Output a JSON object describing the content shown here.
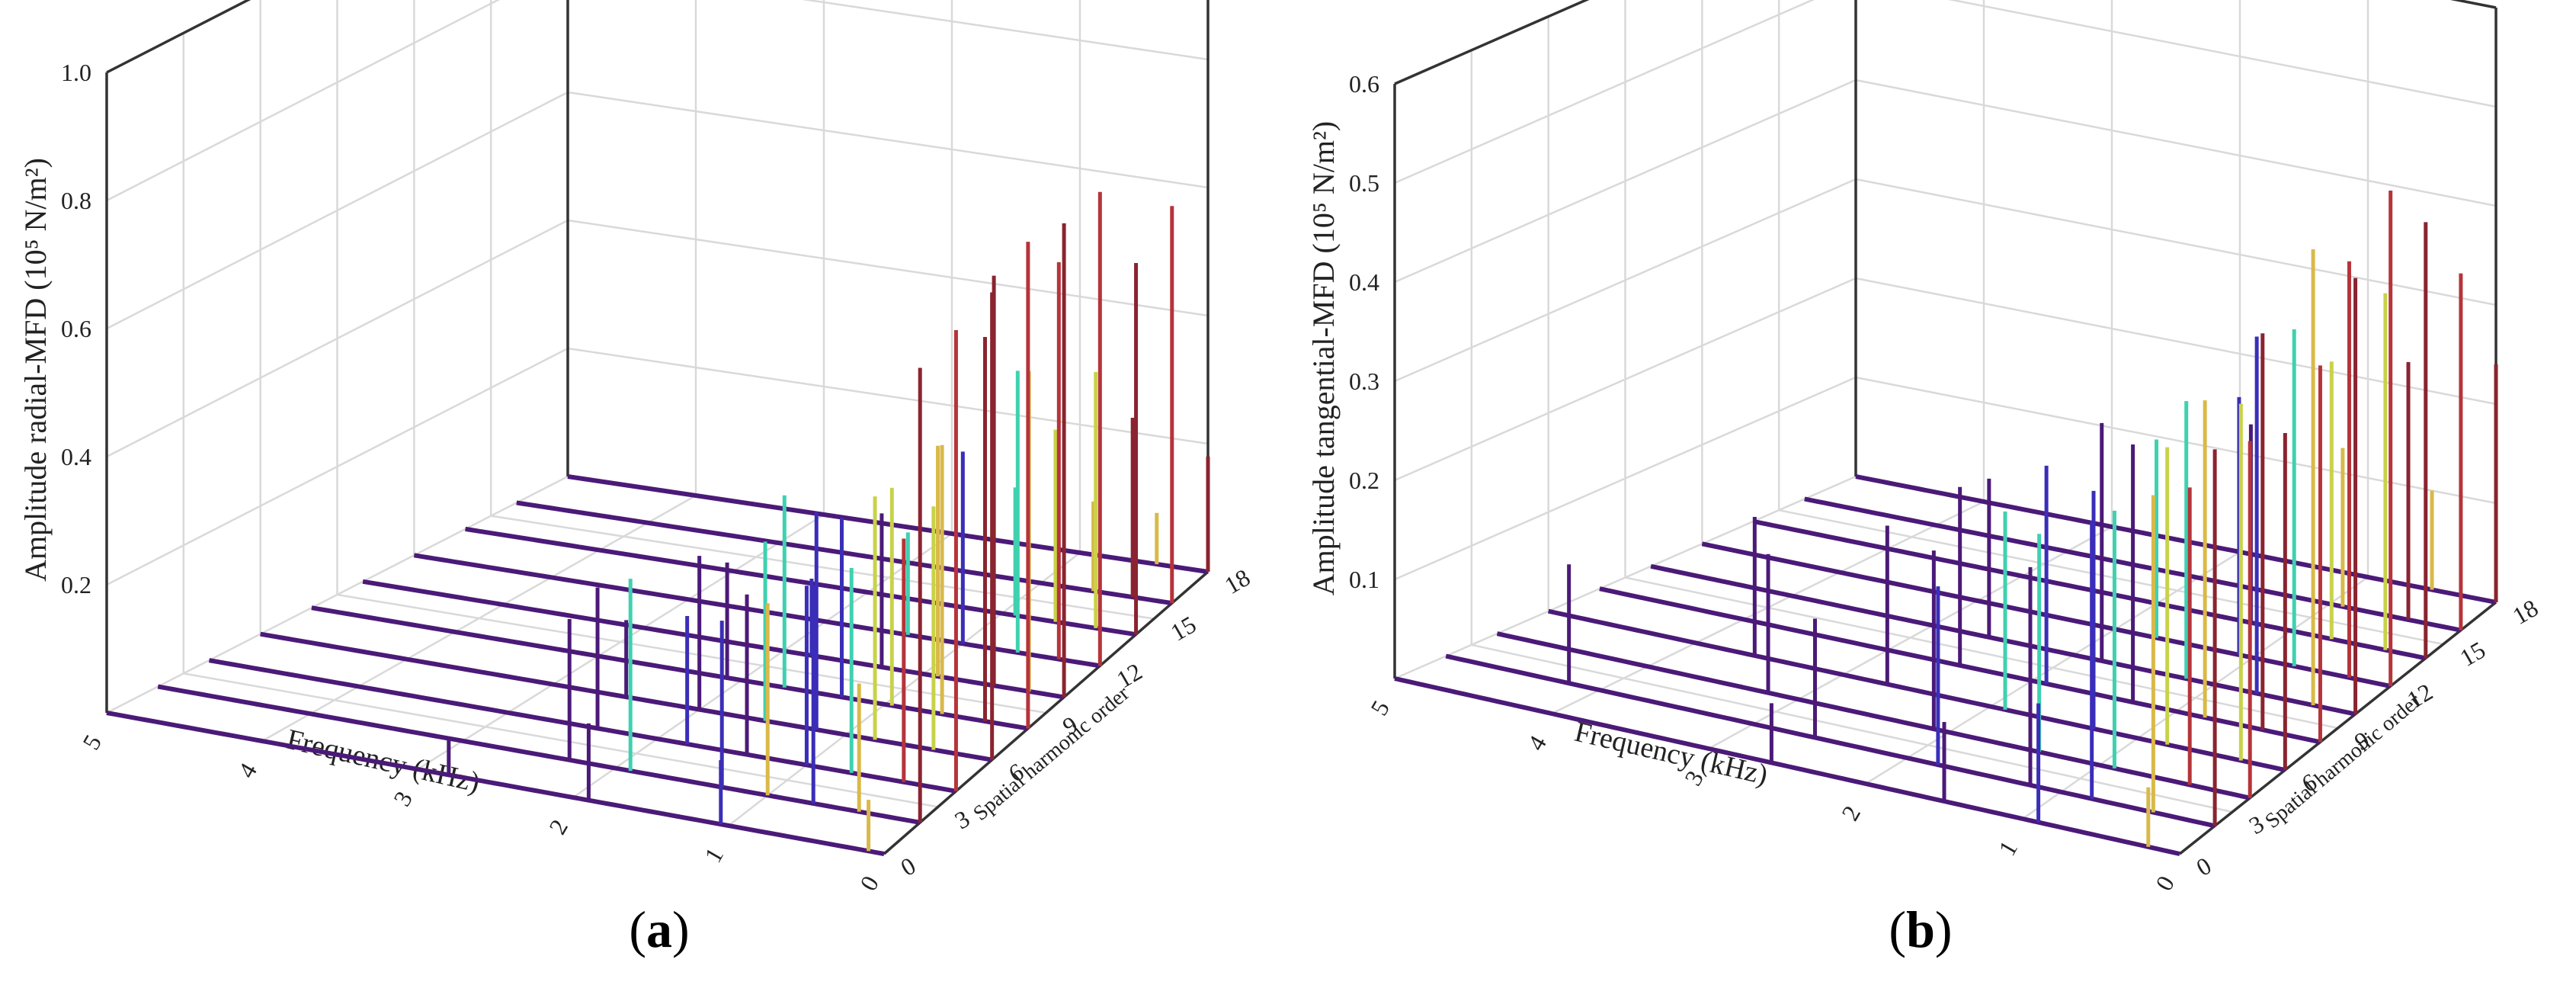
{
  "chart_data": [
    {
      "type": "bar",
      "panel": "a",
      "caption_letter": "a",
      "ylabel": "Amplitude radial-MFD (10⁵ N/m²)",
      "xlabel": "Frequency (kHz)",
      "zlabel": "Spatial harmonic order",
      "ylim": [
        0,
        1.0
      ],
      "yticks": [
        "0.2",
        "0.4",
        "0.6",
        "0.8",
        "1.0"
      ],
      "xticks": [
        "5",
        "4",
        "3",
        "2",
        "1",
        "0"
      ],
      "zticks": [
        "0",
        "3",
        "6",
        "9",
        "12",
        "15",
        "18"
      ],
      "grid": true,
      "colors": [
        "#4b1a78",
        "#3a2eb8",
        "#3fd1b0",
        "#c8d24a",
        "#d9b94a",
        "#b5343a",
        "#8a2430"
      ],
      "series": [
        {
          "order": 0,
          "spikes": [
            {
              "f": 0.1,
              "a": 0.08
            },
            {
              "f": 1.05,
              "a": 0.1
            },
            {
              "f": 1.9,
              "a": 0.12
            },
            {
              "f": 2.8,
              "a": 0.06
            }
          ]
        },
        {
          "order": 2,
          "spikes": [
            {
              "f": 0.0,
              "a": 0.71
            },
            {
              "f": 0.4,
              "a": 0.2
            },
            {
              "f": 0.7,
              "a": 0.34
            },
            {
              "f": 1.0,
              "a": 0.3
            },
            {
              "f": 1.3,
              "a": 0.26
            },
            {
              "f": 1.9,
              "a": 0.3
            },
            {
              "f": 2.3,
              "a": 0.22
            }
          ]
        },
        {
          "order": 4,
          "spikes": [
            {
              "f": 0.0,
              "a": 0.72
            },
            {
              "f": 0.35,
              "a": 0.38
            },
            {
              "f": 0.7,
              "a": 0.32
            },
            {
              "f": 1.0,
              "a": 0.28
            },
            {
              "f": 1.4,
              "a": 0.25
            },
            {
              "f": 1.8,
              "a": 0.2
            },
            {
              "f": 2.4,
              "a": 0.22
            }
          ]
        },
        {
          "order": 6,
          "spikes": [
            {
              "f": 0.0,
              "a": 0.73
            },
            {
              "f": 0.4,
              "a": 0.38
            },
            {
              "f": 0.8,
              "a": 0.38
            },
            {
              "f": 1.2,
              "a": 0.34
            },
            {
              "f": 1.55,
              "a": 0.28
            },
            {
              "f": 2.0,
              "a": 0.24
            },
            {
              "f": 2.5,
              "a": 0.12
            }
          ]
        },
        {
          "order": 8,
          "spikes": [
            {
              "f": 0.0,
              "a": 0.76
            },
            {
              "f": 0.3,
              "a": 0.6
            },
            {
              "f": 0.6,
              "a": 0.42
            },
            {
              "f": 0.95,
              "a": 0.34
            },
            {
              "f": 1.3,
              "a": 0.28
            },
            {
              "f": 1.7,
              "a": 0.3
            },
            {
              "f": 2.1,
              "a": 0.18
            }
          ]
        },
        {
          "order": 10,
          "spikes": [
            {
              "f": 0.0,
              "a": 0.74
            },
            {
              "f": 0.25,
              "a": 0.5
            },
            {
              "f": 0.5,
              "a": 0.64
            },
            {
              "f": 0.9,
              "a": 0.36
            },
            {
              "f": 1.3,
              "a": 0.24
            },
            {
              "f": 1.8,
              "a": 0.12
            }
          ]
        },
        {
          "order": 12,
          "spikes": [
            {
              "f": 0.0,
              "a": 0.74
            },
            {
              "f": 0.3,
              "a": 0.62
            },
            {
              "f": 0.6,
              "a": 0.44
            },
            {
              "f": 1.0,
              "a": 0.3
            },
            {
              "f": 1.4,
              "a": 0.16
            }
          ]
        },
        {
          "order": 14,
          "spikes": [
            {
              "f": 0.0,
              "a": 0.58
            },
            {
              "f": 0.3,
              "a": 0.4
            },
            {
              "f": 0.6,
              "a": 0.3
            },
            {
              "f": 0.9,
              "a": 0.2
            }
          ]
        },
        {
          "order": 16,
          "spikes": [
            {
              "f": 0.0,
              "a": 0.62
            },
            {
              "f": 0.3,
              "a": 0.28
            },
            {
              "f": 0.6,
              "a": 0.14
            }
          ]
        },
        {
          "order": 18,
          "spikes": [
            {
              "f": 0.0,
              "a": 0.18
            },
            {
              "f": 0.4,
              "a": 0.08
            }
          ]
        }
      ]
    },
    {
      "type": "bar",
      "panel": "b",
      "caption_letter": "b",
      "ylabel": "Amplitude tangential-MFD (10⁵ N/m²)",
      "xlabel": "Frequency (kHz)",
      "zlabel": "Spatial harmonic order",
      "ylim": [
        0,
        0.6
      ],
      "yticks": [
        "0.1",
        "0.2",
        "0.3",
        "0.4",
        "0.5",
        "0.6"
      ],
      "xticks": [
        "5",
        "4",
        "3",
        "2",
        "1",
        "0"
      ],
      "zticks": [
        "0",
        "3",
        "6",
        "9",
        "12",
        "15",
        "18"
      ],
      "grid": true,
      "colors": [
        "#4b1a78",
        "#3a2eb8",
        "#3fd1b0",
        "#c8d24a",
        "#d9b94a",
        "#b5343a",
        "#8a2430"
      ],
      "series": [
        {
          "order": 0,
          "spikes": [
            {
              "f": 0.2,
              "a": 0.06
            },
            {
              "f": 0.9,
              "a": 0.12
            },
            {
              "f": 1.5,
              "a": 0.08
            },
            {
              "f": 2.6,
              "a": 0.06
            }
          ]
        },
        {
          "order": 2,
          "spikes": [
            {
              "f": 0.0,
              "a": 0.38
            },
            {
              "f": 0.4,
              "a": 0.32
            },
            {
              "f": 0.8,
              "a": 0.28
            },
            {
              "f": 1.2,
              "a": 0.22
            },
            {
              "f": 1.8,
              "a": 0.18
            },
            {
              "f": 2.6,
              "a": 0.12
            },
            {
              "f": 4.2,
              "a": 0.12
            }
          ]
        },
        {
          "order": 4,
          "spikes": [
            {
              "f": 0.0,
              "a": 0.36
            },
            {
              "f": 0.4,
              "a": 0.3
            },
            {
              "f": 0.9,
              "a": 0.26
            },
            {
              "f": 1.4,
              "a": 0.22
            },
            {
              "f": 2.1,
              "a": 0.18
            },
            {
              "f": 3.2,
              "a": 0.14
            }
          ]
        },
        {
          "order": 6,
          "spikes": [
            {
              "f": 0.0,
              "a": 0.34
            },
            {
              "f": 0.3,
              "a": 0.36
            },
            {
              "f": 0.8,
              "a": 0.3
            },
            {
              "f": 1.3,
              "a": 0.24
            },
            {
              "f": 1.9,
              "a": 0.2
            },
            {
              "f": 2.7,
              "a": 0.16
            },
            {
              "f": 3.6,
              "a": 0.14
            }
          ]
        },
        {
          "order": 8,
          "spikes": [
            {
              "f": 0.0,
              "a": 0.38
            },
            {
              "f": 0.4,
              "a": 0.4
            },
            {
              "f": 0.8,
              "a": 0.32
            },
            {
              "f": 1.3,
              "a": 0.26
            },
            {
              "f": 1.9,
              "a": 0.22
            },
            {
              "f": 2.5,
              "a": 0.18
            }
          ]
        },
        {
          "order": 10,
          "spikes": [
            {
              "f": 0.0,
              "a": 0.44
            },
            {
              "f": 0.3,
              "a": 0.46
            },
            {
              "f": 0.7,
              "a": 0.36
            },
            {
              "f": 1.2,
              "a": 0.28
            },
            {
              "f": 1.8,
              "a": 0.24
            },
            {
              "f": 2.6,
              "a": 0.16
            }
          ]
        },
        {
          "order": 12,
          "spikes": [
            {
              "f": 0.0,
              "a": 0.5
            },
            {
              "f": 0.3,
              "a": 0.42
            },
            {
              "f": 0.7,
              "a": 0.34
            },
            {
              "f": 1.1,
              "a": 0.26
            },
            {
              "f": 1.7,
              "a": 0.2
            }
          ]
        },
        {
          "order": 14,
          "spikes": [
            {
              "f": 0.0,
              "a": 0.44
            },
            {
              "f": 0.3,
              "a": 0.36
            },
            {
              "f": 0.7,
              "a": 0.28
            },
            {
              "f": 1.3,
              "a": 0.2
            }
          ]
        },
        {
          "order": 16,
          "spikes": [
            {
              "f": 0.0,
              "a": 0.36
            },
            {
              "f": 0.4,
              "a": 0.26
            },
            {
              "f": 0.9,
              "a": 0.16
            }
          ]
        },
        {
          "order": 18,
          "spikes": [
            {
              "f": 0.0,
              "a": 0.24
            },
            {
              "f": 0.5,
              "a": 0.1
            }
          ]
        }
      ]
    }
  ]
}
